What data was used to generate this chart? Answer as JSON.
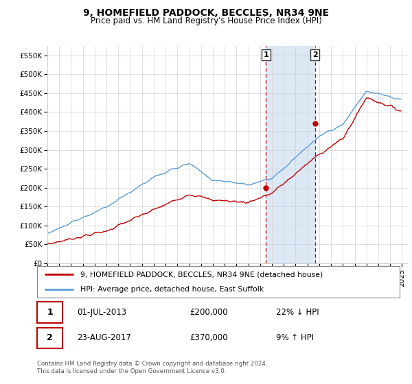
{
  "title": "9, HOMEFIELD PADDOCK, BECCLES, NR34 9NE",
  "subtitle": "Price paid vs. HM Land Registry's House Price Index (HPI)",
  "ylim": [
    0,
    575000
  ],
  "yticks": [
    0,
    50000,
    100000,
    150000,
    200000,
    250000,
    300000,
    350000,
    400000,
    450000,
    500000,
    550000
  ],
  "ytick_labels": [
    "£0",
    "£50K",
    "£100K",
    "£150K",
    "£200K",
    "£250K",
    "£300K",
    "£350K",
    "£400K",
    "£450K",
    "£500K",
    "£550K"
  ],
  "sale1_year": 2013.5,
  "sale1_price": 200000,
  "sale2_year": 2017.639,
  "sale2_price": 370000,
  "shaded_region_color": "#dce9f5",
  "hpi_color": "#5b9bd5",
  "price_color": "#c00000",
  "dashed_line_color": "#c00000",
  "legend1_text": "9, HOMEFIELD PADDOCK, BECCLES, NR34 9NE (detached house)",
  "legend2_text": "HPI: Average price, detached house, East Suffolk",
  "footnote": "Contains HM Land Registry data © Crown copyright and database right 2024.\nThis data is licensed under the Open Government Licence v3.0.",
  "background_color": "#ffffff",
  "xlim_start": 1995,
  "xlim_end": 2025.5
}
